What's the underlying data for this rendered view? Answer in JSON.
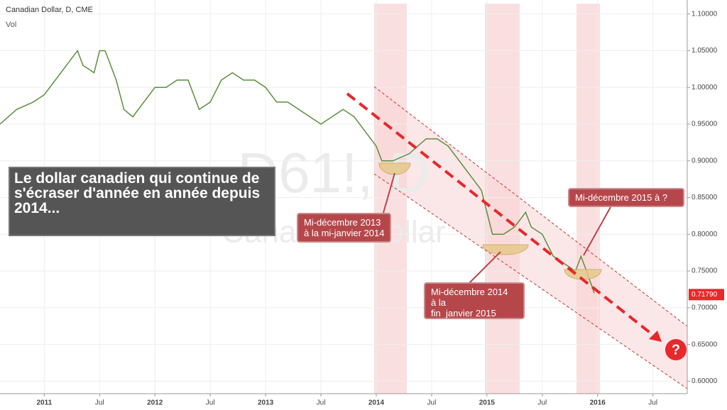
{
  "chart_data": {
    "type": "line",
    "title": "Canadian Dollar, D, CME",
    "subtitle": "Vol",
    "watermark": [
      "D61!, D",
      "Canadian Dollar"
    ],
    "xlim": [
      2010.6,
      2016.81
    ],
    "xticks": [
      {
        "value": 2011,
        "label": "2011"
      },
      {
        "value": 2011.5,
        "label": "Jul"
      },
      {
        "value": 2012,
        "label": "2012"
      },
      {
        "value": 2012.5,
        "label": "Jul"
      },
      {
        "value": 2013,
        "label": "2013"
      },
      {
        "value": 2013.5,
        "label": "Jul"
      },
      {
        "value": 2014,
        "label": "2014"
      },
      {
        "value": 2014.5,
        "label": "Jul"
      },
      {
        "value": 2015,
        "label": "2015"
      },
      {
        "value": 2015.5,
        "label": "Jul"
      },
      {
        "value": 2016,
        "label": "2016"
      },
      {
        "value": 2016.5,
        "label": "Jul"
      }
    ],
    "ylim": [
      0.583,
      1.119
    ],
    "yticks": [
      {
        "value": 0.6,
        "label": "0.60000"
      },
      {
        "value": 0.65,
        "label": "0.65000"
      },
      {
        "value": 0.7,
        "label": "0.70000"
      },
      {
        "value": 0.75,
        "label": "0.75000"
      },
      {
        "value": 0.8,
        "label": "0.80000"
      },
      {
        "value": 0.85,
        "label": "0.85000"
      },
      {
        "value": 0.9,
        "label": "0.90000"
      },
      {
        "value": 0.95,
        "label": "0.95000"
      },
      {
        "value": 1.0,
        "label": "1.00000"
      },
      {
        "value": 1.05,
        "label": "1.05000"
      },
      {
        "value": 1.1,
        "label": "1.10000"
      }
    ],
    "grid": true,
    "last_price": {
      "value": 0.7179,
      "label": "0.71790"
    },
    "series": [
      {
        "name": "Canadian Dollar",
        "color": "#5a8f3c",
        "x": [
          2010.6,
          2010.75,
          2010.9,
          2011.0,
          2011.1,
          2011.2,
          2011.3,
          2011.35,
          2011.45,
          2011.5,
          2011.55,
          2011.65,
          2011.72,
          2011.8,
          2011.9,
          2012.0,
          2012.1,
          2012.2,
          2012.3,
          2012.4,
          2012.5,
          2012.6,
          2012.7,
          2012.8,
          2012.9,
          2013.0,
          2013.1,
          2013.2,
          2013.3,
          2013.4,
          2013.5,
          2013.6,
          2013.7,
          2013.8,
          2013.9,
          2014.0,
          2014.05,
          2014.15,
          2014.3,
          2014.45,
          2014.55,
          2014.65,
          2014.75,
          2014.85,
          2014.95,
          2015.05,
          2015.15,
          2015.25,
          2015.35,
          2015.4,
          2015.5,
          2015.6,
          2015.7,
          2015.8,
          2015.85,
          2015.9,
          2015.97
        ],
        "values": [
          0.95,
          0.97,
          0.98,
          0.99,
          1.01,
          1.03,
          1.05,
          1.03,
          1.02,
          1.05,
          1.05,
          1.01,
          0.97,
          0.96,
          0.98,
          1.0,
          1.0,
          1.01,
          1.01,
          0.97,
          0.98,
          1.01,
          1.02,
          1.01,
          1.01,
          1.0,
          0.98,
          0.98,
          0.97,
          0.96,
          0.95,
          0.96,
          0.97,
          0.96,
          0.94,
          0.92,
          0.9,
          0.9,
          0.91,
          0.93,
          0.93,
          0.92,
          0.9,
          0.88,
          0.86,
          0.8,
          0.8,
          0.81,
          0.83,
          0.81,
          0.8,
          0.77,
          0.76,
          0.75,
          0.77,
          0.75,
          0.72
        ]
      }
    ]
  },
  "annotations": {
    "main": "Le dollar canadien qui continue de s'écraser d'année en année depuis 2014...",
    "callout_1": [
      "Mi-décembre 2013",
      "à la mi-janvier 2014"
    ],
    "callout_2": [
      "Mi-décembre 2014",
      "à la",
      "fin  janvier 2015"
    ],
    "callout_3": "Mi-décembre 2015 à ?",
    "question": "?"
  }
}
